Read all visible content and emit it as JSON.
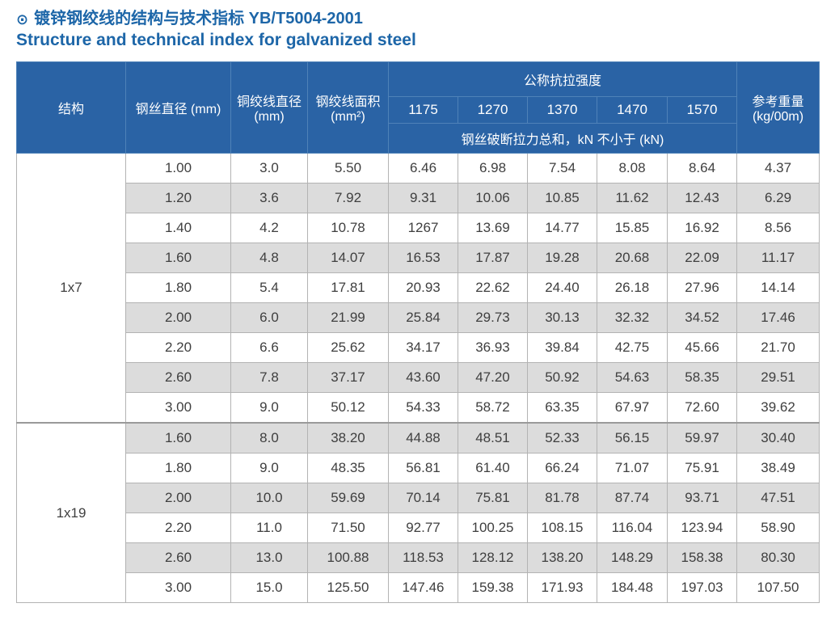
{
  "colors": {
    "title_blue": "#1d66a8",
    "header_bg": "#2a63a5",
    "header_border": "#4f82b8",
    "row_alt_bg": "#dcdcdc",
    "cell_border": "#b3b3b3",
    "body_text": "#3f3f3f",
    "group_divider": "#9a9a9a"
  },
  "header": {
    "bullet_icon": "⊙",
    "title_cn": "镀锌钢绞线的结构与技术指标 YB/T5004-2001",
    "title_en": "Structure and technical index for galvanized steel"
  },
  "table": {
    "headers": {
      "structure": "结构",
      "wire_diameter": "钢丝直径 (mm)",
      "strand_diameter": "铜绞线直径 (mm)",
      "strand_area": "钢绞线面积 (mm²)",
      "tensile_group": "公称抗拉强度",
      "tensile_grades": [
        "1175",
        "1270",
        "1370",
        "1470",
        "1570"
      ],
      "breaking_note": "钢丝破断拉力总和，kN 不小于 (kN)",
      "ref_weight": "参考重量 (kg/00m)"
    },
    "groups": [
      {
        "structure": "1x7",
        "rows": [
          [
            "1.00",
            "3.0",
            "5.50",
            "6.46",
            "6.98",
            "7.54",
            "8.08",
            "8.64",
            "4.37"
          ],
          [
            "1.20",
            "3.6",
            "7.92",
            "9.31",
            "10.06",
            "10.85",
            "11.62",
            "12.43",
            "6.29"
          ],
          [
            "1.40",
            "4.2",
            "10.78",
            "1267",
            "13.69",
            "14.77",
            "15.85",
            "16.92",
            "8.56"
          ],
          [
            "1.60",
            "4.8",
            "14.07",
            "16.53",
            "17.87",
            "19.28",
            "20.68",
            "22.09",
            "11.17"
          ],
          [
            "1.80",
            "5.4",
            "17.81",
            "20.93",
            "22.62",
            "24.40",
            "26.18",
            "27.96",
            "14.14"
          ],
          [
            "2.00",
            "6.0",
            "21.99",
            "25.84",
            "29.73",
            "30.13",
            "32.32",
            "34.52",
            "17.46"
          ],
          [
            "2.20",
            "6.6",
            "25.62",
            "34.17",
            "36.93",
            "39.84",
            "42.75",
            "45.66",
            "21.70"
          ],
          [
            "2.60",
            "7.8",
            "37.17",
            "43.60",
            "47.20",
            "50.92",
            "54.63",
            "58.35",
            "29.51"
          ],
          [
            "3.00",
            "9.0",
            "50.12",
            "54.33",
            "58.72",
            "63.35",
            "67.97",
            "72.60",
            "39.62"
          ]
        ]
      },
      {
        "structure": "1x19",
        "rows": [
          [
            "1.60",
            "8.0",
            "38.20",
            "44.88",
            "48.51",
            "52.33",
            "56.15",
            "59.97",
            "30.40"
          ],
          [
            "1.80",
            "9.0",
            "48.35",
            "56.81",
            "61.40",
            "66.24",
            "71.07",
            "75.91",
            "38.49"
          ],
          [
            "2.00",
            "10.0",
            "59.69",
            "70.14",
            "75.81",
            "81.78",
            "87.74",
            "93.71",
            "47.51"
          ],
          [
            "2.20",
            "11.0",
            "71.50",
            "92.77",
            "100.25",
            "108.15",
            "116.04",
            "123.94",
            "58.90"
          ],
          [
            "2.60",
            "13.0",
            "100.88",
            "118.53",
            "128.12",
            "138.20",
            "148.29",
            "158.38",
            "80.30"
          ],
          [
            "3.00",
            "15.0",
            "125.50",
            "147.46",
            "159.38",
            "171.93",
            "184.48",
            "197.03",
            "107.50"
          ]
        ]
      }
    ]
  }
}
